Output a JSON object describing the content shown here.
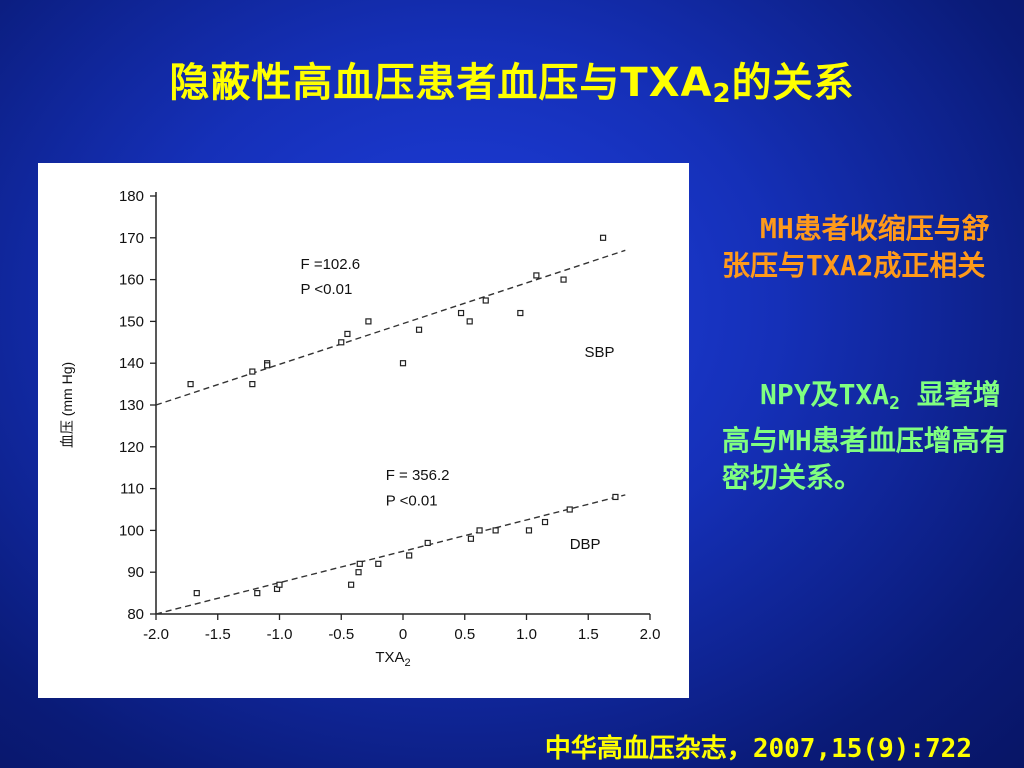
{
  "slide": {
    "title_main": "隐蔽性高血压患者血压与TXA",
    "title_sub": "2",
    "title_end": "的关系",
    "note1": "MH患者收缩压与舒张压与TXA2成正相关",
    "note2_a": "NPY及TXA",
    "note2_sub": "2",
    "note2_b": " 显著增高与MH患者血压增高有密切关系。",
    "source": "中华高血压杂志，2007,15(9):722"
  },
  "chart_data": {
    "type": "scatter",
    "xlabel": "TXA₂",
    "ylabel": "血压 (mm Hg)",
    "xlim": [
      -2.0,
      2.0
    ],
    "ylim": [
      80,
      180
    ],
    "xticks": [
      "-2.0",
      "-1.5",
      "-1.0",
      "-0.5",
      "0",
      "0.5",
      "1.0",
      "1.5",
      "2.0"
    ],
    "yticks": [
      "80",
      "90",
      "100",
      "110",
      "120",
      "130",
      "140",
      "150",
      "160",
      "170",
      "180"
    ],
    "grid": false,
    "series": [
      {
        "name": "SBP",
        "stat_F": "F =102.6",
        "stat_P": "P <0.01",
        "points": [
          [
            -1.72,
            135
          ],
          [
            -1.22,
            138
          ],
          [
            -1.22,
            135
          ],
          [
            -1.1,
            140
          ],
          [
            -1.1,
            139.5
          ],
          [
            -0.5,
            145
          ],
          [
            -0.45,
            147
          ],
          [
            -0.28,
            150
          ],
          [
            0.0,
            140
          ],
          [
            0.13,
            148
          ],
          [
            0.47,
            152
          ],
          [
            0.54,
            150
          ],
          [
            0.67,
            155
          ],
          [
            0.95,
            152
          ],
          [
            1.08,
            161
          ],
          [
            1.3,
            160
          ],
          [
            1.62,
            170
          ]
        ],
        "fit": [
          [
            -2.0,
            130
          ],
          [
            1.8,
            167
          ]
        ]
      },
      {
        "name": "DBP",
        "stat_F": "F = 356.2",
        "stat_P": "P <0.01",
        "points": [
          [
            -1.67,
            85
          ],
          [
            -1.18,
            85
          ],
          [
            -1.02,
            86
          ],
          [
            -1.0,
            87
          ],
          [
            -0.42,
            87
          ],
          [
            -0.36,
            90
          ],
          [
            -0.35,
            92
          ],
          [
            -0.2,
            92
          ],
          [
            0.05,
            94
          ],
          [
            0.2,
            97
          ],
          [
            0.55,
            98
          ],
          [
            0.62,
            100
          ],
          [
            0.75,
            100
          ],
          [
            1.02,
            100
          ],
          [
            1.15,
            102
          ],
          [
            1.35,
            105
          ],
          [
            1.72,
            108
          ]
        ],
        "fit": [
          [
            -2.0,
            80
          ],
          [
            1.8,
            108.5
          ]
        ]
      }
    ]
  }
}
